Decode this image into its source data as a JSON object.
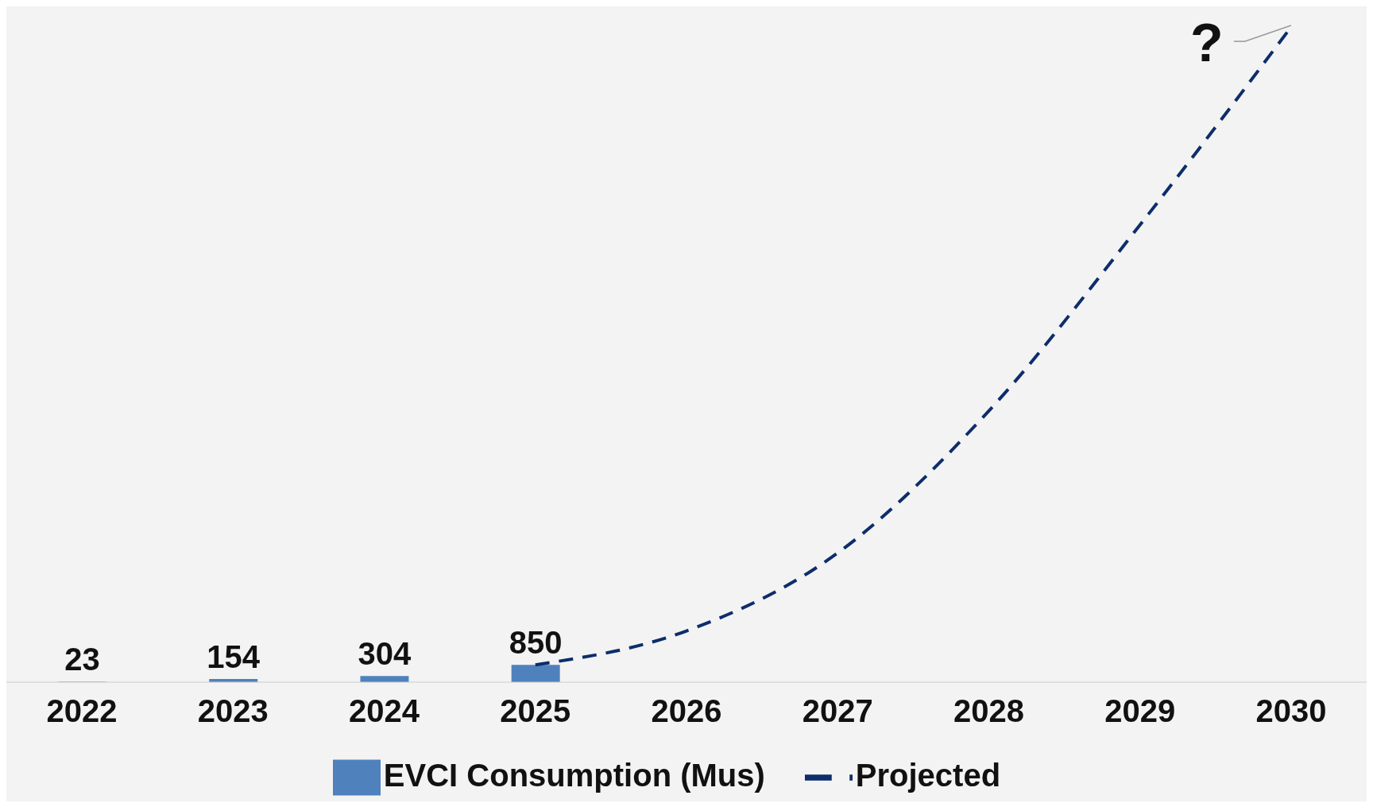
{
  "chart_data": {
    "type": "bar",
    "categories": [
      "2022",
      "2023",
      "2024",
      "2025",
      "2026",
      "2027",
      "2028",
      "2029",
      "2030"
    ],
    "series": [
      {
        "name": "EVCI Consumption (Mus)",
        "color": "#4f81bd",
        "values": [
          23,
          154,
          304,
          850,
          null,
          null,
          null,
          null,
          null
        ],
        "value_labels": [
          "23",
          "154",
          "304",
          "850",
          null,
          null,
          null,
          null,
          null
        ]
      },
      {
        "name": "Projected",
        "type": "line",
        "color": "#0d2d6b",
        "line_style": "dashed",
        "marker": "none",
        "values": [
          null,
          null,
          null,
          850,
          2510,
          6330,
          13290,
          22400,
          32100
        ]
      }
    ],
    "tick_labels": "x",
    "grid": false,
    "legend": "bottom",
    "annotations": [
      {
        "text": "?",
        "x": "2030",
        "y": 32100
      }
    ]
  }
}
